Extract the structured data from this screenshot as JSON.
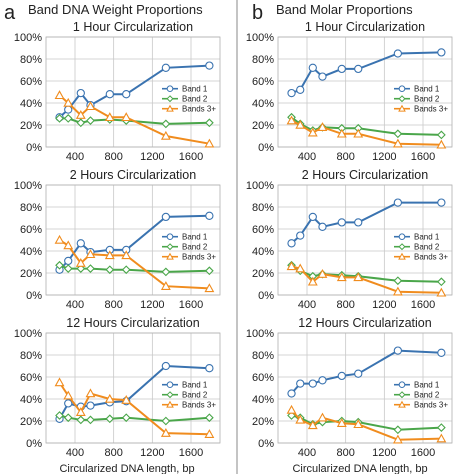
{
  "panels": [
    {
      "letter": "a",
      "title": "Band DNA Weight Proportions"
    },
    {
      "letter": "b",
      "title": "Band Molar Proportions"
    }
  ],
  "colors": {
    "band1": "#3a73b0",
    "band2": "#4aa64a",
    "band3": "#f08c1e",
    "grid": "#c8c8c8",
    "divider": "#888888"
  },
  "chart_data": [
    {
      "type": "line",
      "panel": "a",
      "title": "1 Hour Circularization",
      "ylim": [
        0,
        100
      ],
      "yticks": [
        "0%",
        "20%",
        "40%",
        "60%",
        "80%",
        "100%"
      ],
      "xlim": [
        100,
        1900
      ],
      "xticks": [
        {
          "value": 400,
          "label": "400"
        },
        {
          "value": 800,
          "label": "800"
        },
        {
          "value": 1200,
          "label": "1200"
        },
        {
          "value": 1600,
          "label": "1600"
        }
      ],
      "legend": "right",
      "series": [
        {
          "name": "Band 1",
          "marker": "circle",
          "x": [
            240,
            330,
            460,
            560,
            760,
            930,
            1340,
            1790
          ],
          "y": [
            27,
            34,
            49,
            38,
            48,
            48,
            72,
            74
          ]
        },
        {
          "name": "Band 2",
          "marker": "diamond",
          "x": [
            240,
            330,
            460,
            560,
            760,
            930,
            1340,
            1790
          ],
          "y": [
            26,
            26,
            22,
            24,
            25,
            24,
            21,
            22
          ]
        },
        {
          "name": "Bands 3+",
          "marker": "triangle",
          "x": [
            240,
            330,
            460,
            560,
            760,
            930,
            1340,
            1790
          ],
          "y": [
            47,
            40,
            29,
            37,
            27,
            27,
            10,
            3
          ]
        }
      ]
    },
    {
      "type": "line",
      "panel": "b",
      "title": "1 Hour Circularization",
      "ylim": [
        0,
        100
      ],
      "yticks": [
        "0%",
        "20%",
        "40%",
        "60%",
        "80%",
        "100%"
      ],
      "xlim": [
        100,
        1900
      ],
      "xticks": [
        {
          "value": 400,
          "label": "400"
        },
        {
          "value": 800,
          "label": "800"
        },
        {
          "value": 1200,
          "label": "1200"
        },
        {
          "value": 1600,
          "label": "1600"
        }
      ],
      "legend": "right",
      "series": [
        {
          "name": "Band 1",
          "marker": "circle",
          "x": [
            240,
            330,
            460,
            560,
            760,
            930,
            1340,
            1790
          ],
          "y": [
            49,
            52,
            72,
            64,
            71,
            71,
            85,
            86
          ]
        },
        {
          "name": "Band 2",
          "marker": "diamond",
          "x": [
            240,
            330,
            460,
            560,
            760,
            930,
            1340,
            1790
          ],
          "y": [
            27,
            21,
            15,
            18,
            17,
            17,
            12,
            11
          ]
        },
        {
          "name": "Bands 3+",
          "marker": "triangle",
          "x": [
            240,
            330,
            460,
            560,
            760,
            930,
            1340,
            1790
          ],
          "y": [
            24,
            20,
            13,
            18,
            12,
            12,
            3,
            2
          ]
        }
      ]
    },
    {
      "type": "line",
      "panel": "a",
      "title": "2 Hours Circularization",
      "ylim": [
        0,
        100
      ],
      "yticks": [
        "0%",
        "20%",
        "40%",
        "60%",
        "80%",
        "100%"
      ],
      "xlim": [
        100,
        1900
      ],
      "xticks": [
        {
          "value": 400,
          "label": "400"
        },
        {
          "value": 800,
          "label": "800"
        },
        {
          "value": 1200,
          "label": "1200"
        },
        {
          "value": 1600,
          "label": "1600"
        }
      ],
      "legend": "right",
      "series": [
        {
          "name": "Band 1",
          "marker": "circle",
          "x": [
            240,
            330,
            460,
            560,
            760,
            930,
            1340,
            1790
          ],
          "y": [
            23,
            31,
            47,
            39,
            41,
            41,
            71,
            72
          ]
        },
        {
          "name": "Band 2",
          "marker": "diamond",
          "x": [
            240,
            330,
            460,
            560,
            760,
            930,
            1340,
            1790
          ],
          "y": [
            27,
            24,
            24,
            24,
            23,
            23,
            21,
            22
          ]
        },
        {
          "name": "Bands 3+",
          "marker": "triangle",
          "x": [
            240,
            330,
            460,
            560,
            760,
            930,
            1340,
            1790
          ],
          "y": [
            50,
            45,
            29,
            37,
            36,
            36,
            8,
            6
          ]
        }
      ]
    },
    {
      "type": "line",
      "panel": "b",
      "title": "2 Hours Circularization",
      "ylim": [
        0,
        100
      ],
      "yticks": [
        "0%",
        "20%",
        "40%",
        "60%",
        "80%",
        "100%"
      ],
      "xlim": [
        100,
        1900
      ],
      "xticks": [
        {
          "value": 400,
          "label": "400"
        },
        {
          "value": 800,
          "label": "800"
        },
        {
          "value": 1200,
          "label": "1200"
        },
        {
          "value": 1600,
          "label": "1600"
        }
      ],
      "legend": "right",
      "series": [
        {
          "name": "Band 1",
          "marker": "circle",
          "x": [
            240,
            330,
            460,
            560,
            760,
            930,
            1340,
            1790
          ],
          "y": [
            47,
            54,
            71,
            62,
            66,
            66,
            84,
            84
          ]
        },
        {
          "name": "Band 2",
          "marker": "diamond",
          "x": [
            240,
            330,
            460,
            560,
            760,
            930,
            1340,
            1790
          ],
          "y": [
            27,
            22,
            17,
            19,
            18,
            17,
            13,
            12
          ]
        },
        {
          "name": "Bands 3+",
          "marker": "triangle",
          "x": [
            240,
            330,
            460,
            560,
            760,
            930,
            1340,
            1790
          ],
          "y": [
            26,
            24,
            12,
            19,
            16,
            16,
            3,
            2
          ]
        }
      ]
    },
    {
      "type": "line",
      "panel": "a",
      "title": "12 Hours Circularization",
      "ylim": [
        0,
        100
      ],
      "yticks": [
        "0%",
        "20%",
        "40%",
        "60%",
        "80%",
        "100%"
      ],
      "xlim": [
        100,
        1900
      ],
      "xticks": [
        {
          "value": 400,
          "label": "400"
        },
        {
          "value": 800,
          "label": "800"
        },
        {
          "value": 1200,
          "label": "1200"
        },
        {
          "value": 1600,
          "label": "1600"
        }
      ],
      "legend": "right",
      "series": [
        {
          "name": "Band 1",
          "marker": "circle",
          "x": [
            240,
            330,
            460,
            560,
            760,
            930,
            1340,
            1790
          ],
          "y": [
            22,
            36,
            33,
            34,
            37,
            38,
            70,
            68
          ]
        },
        {
          "name": "Band 2",
          "marker": "diamond",
          "x": [
            240,
            330,
            460,
            560,
            760,
            930,
            1340,
            1790
          ],
          "y": [
            25,
            23,
            21,
            21,
            22,
            23,
            20,
            23
          ]
        },
        {
          "name": "Bands 3+",
          "marker": "triangle",
          "x": [
            240,
            330,
            460,
            560,
            760,
            930,
            1340,
            1790
          ],
          "y": [
            55,
            43,
            28,
            45,
            40,
            39,
            9,
            8
          ]
        }
      ]
    },
    {
      "type": "line",
      "panel": "b",
      "title": "12 Hours Circularization",
      "ylim": [
        0,
        100
      ],
      "yticks": [
        "0%",
        "20%",
        "40%",
        "60%",
        "80%",
        "100%"
      ],
      "xlim": [
        100,
        1900
      ],
      "xticks": [
        {
          "value": 400,
          "label": "400"
        },
        {
          "value": 800,
          "label": "800"
        },
        {
          "value": 1200,
          "label": "1200"
        },
        {
          "value": 1600,
          "label": "1600"
        }
      ],
      "legend": "right",
      "series": [
        {
          "name": "Band 1",
          "marker": "circle",
          "x": [
            240,
            330,
            460,
            560,
            760,
            930,
            1340,
            1790
          ],
          "y": [
            45,
            54,
            54,
            57,
            61,
            63,
            84,
            82
          ]
        },
        {
          "name": "Band 2",
          "marker": "diamond",
          "x": [
            240,
            330,
            460,
            560,
            760,
            930,
            1340,
            1790
          ],
          "y": [
            25,
            23,
            17,
            19,
            20,
            19,
            12,
            14
          ]
        },
        {
          "name": "Bands 3+",
          "marker": "triangle",
          "x": [
            240,
            330,
            460,
            560,
            760,
            930,
            1340,
            1790
          ],
          "y": [
            30,
            21,
            16,
            23,
            18,
            17,
            3,
            4
          ]
        }
      ]
    }
  ],
  "x_axis_label": [
    "Circularized DNA length, bp",
    "Circularized DNA length, bp"
  ]
}
